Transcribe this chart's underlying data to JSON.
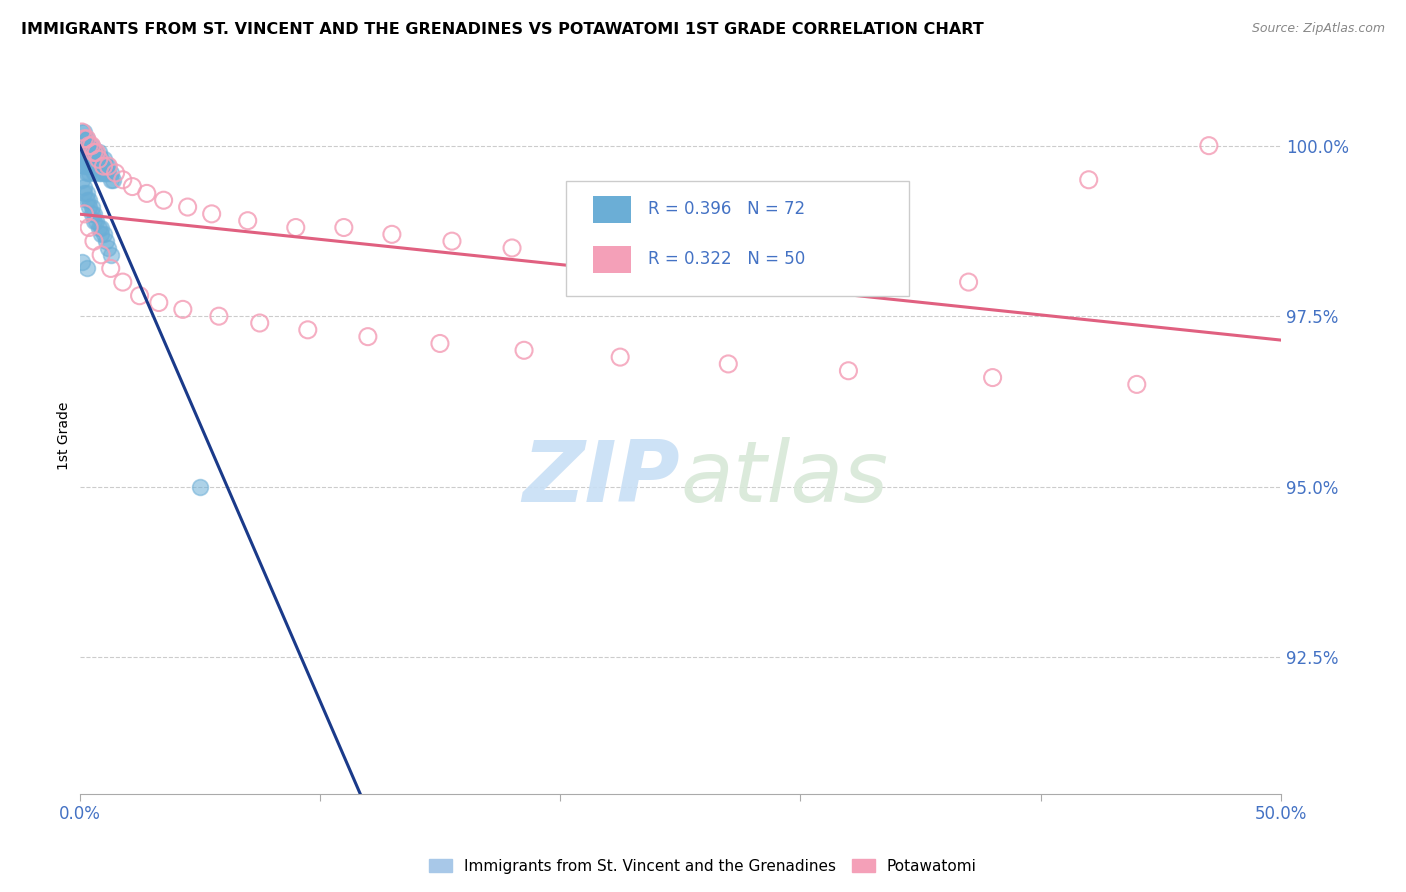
{
  "title": "IMMIGRANTS FROM ST. VINCENT AND THE GRENADINES VS POTAWATOMI 1ST GRADE CORRELATION CHART",
  "source_text": "Source: ZipAtlas.com",
  "ylabel": "1st Grade",
  "xlim": [
    0.0,
    0.5
  ],
  "ylim": [
    0.905,
    1.01
  ],
  "xtick_positions": [
    0.0,
    0.1,
    0.2,
    0.3,
    0.4,
    0.5
  ],
  "xtick_labels": [
    "0.0%",
    "",
    "",
    "",
    "",
    "50.0%"
  ],
  "ytick_positions": [
    0.925,
    0.95,
    0.975,
    1.0
  ],
  "ytick_labels": [
    "92.5%",
    "95.0%",
    "97.5%",
    "100.0%"
  ],
  "blue_R": 0.396,
  "blue_N": 72,
  "pink_R": 0.322,
  "pink_N": 50,
  "blue_color": "#6baed6",
  "pink_color": "#f4a0b8",
  "blue_line_color": "#1a3a8a",
  "pink_line_color": "#e06080",
  "legend_label_blue": "Immigrants from St. Vincent and the Grenadines",
  "legend_label_pink": "Potawatomi",
  "watermark_zip": "ZIP",
  "watermark_atlas": "atlas",
  "blue_x": [
    0.001,
    0.001,
    0.001,
    0.001,
    0.001,
    0.002,
    0.002,
    0.002,
    0.002,
    0.002,
    0.002,
    0.003,
    0.003,
    0.003,
    0.003,
    0.003,
    0.003,
    0.004,
    0.004,
    0.004,
    0.004,
    0.004,
    0.005,
    0.005,
    0.005,
    0.005,
    0.006,
    0.006,
    0.006,
    0.006,
    0.007,
    0.007,
    0.007,
    0.008,
    0.008,
    0.008,
    0.008,
    0.009,
    0.009,
    0.009,
    0.01,
    0.01,
    0.01,
    0.011,
    0.011,
    0.012,
    0.012,
    0.013,
    0.013,
    0.014,
    0.001,
    0.002,
    0.002,
    0.003,
    0.003,
    0.004,
    0.004,
    0.005,
    0.005,
    0.006,
    0.006,
    0.007,
    0.008,
    0.009,
    0.009,
    0.01,
    0.011,
    0.012,
    0.013,
    0.05,
    0.001,
    0.003
  ],
  "blue_y": [
    1.002,
    1.001,
    1.0,
    0.999,
    0.998,
    1.002,
    1.001,
    1.0,
    0.999,
    0.998,
    0.997,
    1.001,
    1.0,
    0.999,
    0.998,
    0.997,
    0.996,
    1.0,
    0.999,
    0.998,
    0.997,
    0.996,
    1.0,
    0.999,
    0.998,
    0.997,
    0.999,
    0.998,
    0.997,
    0.996,
    0.999,
    0.998,
    0.997,
    0.999,
    0.998,
    0.997,
    0.996,
    0.998,
    0.997,
    0.996,
    0.998,
    0.997,
    0.996,
    0.997,
    0.996,
    0.997,
    0.996,
    0.996,
    0.995,
    0.995,
    0.995,
    0.994,
    0.993,
    0.993,
    0.992,
    0.992,
    0.991,
    0.991,
    0.99,
    0.99,
    0.989,
    0.989,
    0.988,
    0.988,
    0.987,
    0.987,
    0.986,
    0.985,
    0.984,
    0.95,
    0.983,
    0.982
  ],
  "pink_x": [
    0.001,
    0.002,
    0.003,
    0.004,
    0.005,
    0.006,
    0.007,
    0.008,
    0.01,
    0.012,
    0.015,
    0.018,
    0.022,
    0.028,
    0.035,
    0.045,
    0.055,
    0.07,
    0.09,
    0.11,
    0.13,
    0.155,
    0.18,
    0.21,
    0.24,
    0.28,
    0.32,
    0.37,
    0.42,
    0.47,
    0.002,
    0.004,
    0.006,
    0.009,
    0.013,
    0.018,
    0.025,
    0.033,
    0.043,
    0.058,
    0.075,
    0.095,
    0.12,
    0.15,
    0.185,
    0.225,
    0.27,
    0.32,
    0.38,
    0.44
  ],
  "pink_y": [
    1.002,
    1.001,
    1.001,
    1.0,
    1.0,
    0.999,
    0.999,
    0.998,
    0.997,
    0.997,
    0.996,
    0.995,
    0.994,
    0.993,
    0.992,
    0.991,
    0.99,
    0.989,
    0.988,
    0.988,
    0.987,
    0.986,
    0.985,
    0.984,
    0.983,
    0.982,
    0.981,
    0.98,
    0.995,
    1.0,
    0.99,
    0.988,
    0.986,
    0.984,
    0.982,
    0.98,
    0.978,
    0.977,
    0.976,
    0.975,
    0.974,
    0.973,
    0.972,
    0.971,
    0.97,
    0.969,
    0.968,
    0.967,
    0.966,
    0.965
  ]
}
